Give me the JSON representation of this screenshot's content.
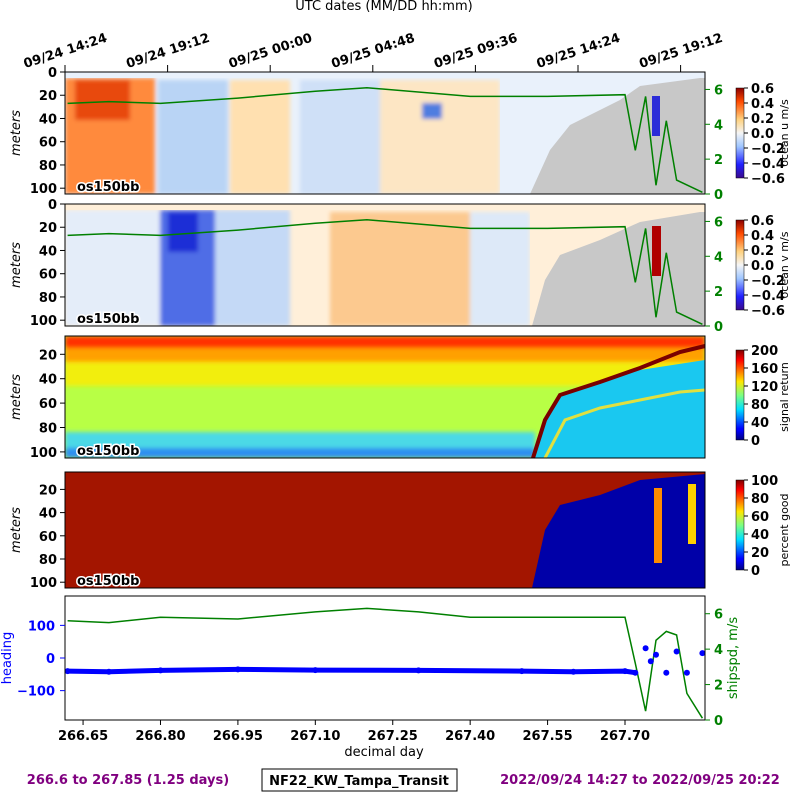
{
  "figure": {
    "top_axis_title": "UTC dates (MM/DD hh:mm)",
    "top_ticks": [
      "09/24 14:24",
      "09/24 19:12",
      "09/25 00:00",
      "09/25 04:48",
      "09/25 09:36",
      "09/25 14:24",
      "09/25 19:12"
    ],
    "footer_left": "266.6 to 267.85 (1.25 days)",
    "footer_center": "NF22_KW_Tampa_Transit",
    "footer_right": "2022/09/24 14:27 to 2022/09/25 20:22",
    "colors": {
      "footer_purple": "#800080",
      "ship_speed": "#008000",
      "heading": "#0000ff",
      "no_data": "#c8c8c8"
    }
  },
  "chart_data": [
    {
      "type": "heatmap",
      "ylabel": "meters",
      "y_ticks": [
        "0",
        "20",
        "40",
        "60",
        "80",
        "100"
      ],
      "ylim": [
        105,
        0
      ],
      "instrument_label": "os150bb",
      "colorbar_label": "ocean u m/s",
      "colorbar_ticks": [
        "0.6",
        "0.4",
        "0.2",
        "0.0",
        "−0.2",
        "−0.4",
        "−0.6"
      ],
      "clim": [
        -0.6,
        0.6
      ],
      "colormap": "jet",
      "right_axis_ticks": [
        "0",
        "2",
        "4",
        "6"
      ],
      "overlay_series": {
        "color": "#008000",
        "x": [
          266.62,
          266.7,
          266.8,
          266.95,
          267.1,
          267.2,
          267.4,
          267.55,
          267.7,
          267.72,
          267.74,
          267.76,
          267.78,
          267.8,
          267.85
        ],
        "y": [
          5.2,
          5.3,
          5.2,
          5.5,
          5.9,
          6.1,
          5.6,
          5.6,
          5.7,
          2.5,
          5.6,
          0.5,
          4.2,
          0.8,
          0.1
        ]
      }
    },
    {
      "type": "heatmap",
      "ylabel": "meters",
      "y_ticks": [
        "0",
        "20",
        "40",
        "60",
        "80",
        "100"
      ],
      "ylim": [
        105,
        0
      ],
      "instrument_label": "os150bb",
      "colorbar_label": "ocean v m/s",
      "colorbar_ticks": [
        "0.6",
        "0.4",
        "0.2",
        "0.0",
        "−0.2",
        "−0.4",
        "−0.6"
      ],
      "clim": [
        -0.6,
        0.6
      ],
      "colormap": "jet",
      "right_axis_ticks": [
        "0",
        "2",
        "4",
        "6"
      ],
      "overlay_series": {
        "color": "#008000",
        "x": [
          266.62,
          266.7,
          266.8,
          266.95,
          267.1,
          267.2,
          267.4,
          267.55,
          267.7,
          267.72,
          267.74,
          267.76,
          267.78,
          267.8,
          267.85
        ],
        "y": [
          5.2,
          5.3,
          5.2,
          5.5,
          5.9,
          6.1,
          5.6,
          5.6,
          5.7,
          2.5,
          5.6,
          0.5,
          4.2,
          0.8,
          0.1
        ]
      }
    },
    {
      "type": "heatmap",
      "ylabel": "meters",
      "y_ticks": [
        "20",
        "40",
        "60",
        "80",
        "100"
      ],
      "ylim": [
        105,
        5
      ],
      "instrument_label": "os150bb",
      "colorbar_label": "signal return",
      "colorbar_ticks": [
        "200",
        "160",
        "120",
        "80",
        "40",
        "0"
      ],
      "clim": [
        0,
        200
      ],
      "colormap": "jet"
    },
    {
      "type": "heatmap",
      "ylabel": "meters",
      "y_ticks": [
        "20",
        "40",
        "60",
        "80",
        "100"
      ],
      "ylim": [
        105,
        5
      ],
      "instrument_label": "os150bb",
      "colorbar_label": "percent good",
      "colorbar_ticks": [
        "100",
        "80",
        "60",
        "40",
        "20",
        "0"
      ],
      "clim": [
        0,
        100
      ],
      "colormap": "jet"
    },
    {
      "type": "line",
      "xlabel": "decimal day",
      "x_ticks": [
        "266.65",
        "266.80",
        "266.95",
        "267.10",
        "267.25",
        "267.40",
        "267.55",
        "267.70"
      ],
      "x_range": [
        266.615,
        267.855
      ],
      "left_label": "heading",
      "left_ticks": [
        "100",
        "0",
        "−100"
      ],
      "left_ylim": [
        -190,
        190
      ],
      "right_label": "shipspd, m/s",
      "right_ticks": [
        "6",
        "4",
        "2",
        "0"
      ],
      "right_ylim": [
        0,
        7
      ],
      "series": [
        {
          "name": "heading",
          "color": "#0000ff",
          "x": [
            266.62,
            266.7,
            266.8,
            266.95,
            267.1,
            267.3,
            267.5,
            267.6,
            267.7,
            267.72,
            267.74,
            267.75,
            267.76,
            267.78,
            267.8,
            267.82,
            267.85
          ],
          "y": [
            -40,
            -42,
            -38,
            -35,
            -37,
            -38,
            -40,
            -42,
            -40,
            -45,
            30,
            -10,
            10,
            -45,
            20,
            -45,
            15
          ]
        },
        {
          "name": "shipspd",
          "color": "#008000",
          "x": [
            266.62,
            266.7,
            266.8,
            266.95,
            267.1,
            267.2,
            267.3,
            267.4,
            267.55,
            267.7,
            267.72,
            267.74,
            267.76,
            267.78,
            267.8,
            267.82,
            267.85
          ],
          "y": [
            5.6,
            5.5,
            5.8,
            5.7,
            6.1,
            6.3,
            6.1,
            5.8,
            5.8,
            5.8,
            3.2,
            0.5,
            4.5,
            5.0,
            4.8,
            1.5,
            0.1
          ]
        }
      ]
    }
  ]
}
